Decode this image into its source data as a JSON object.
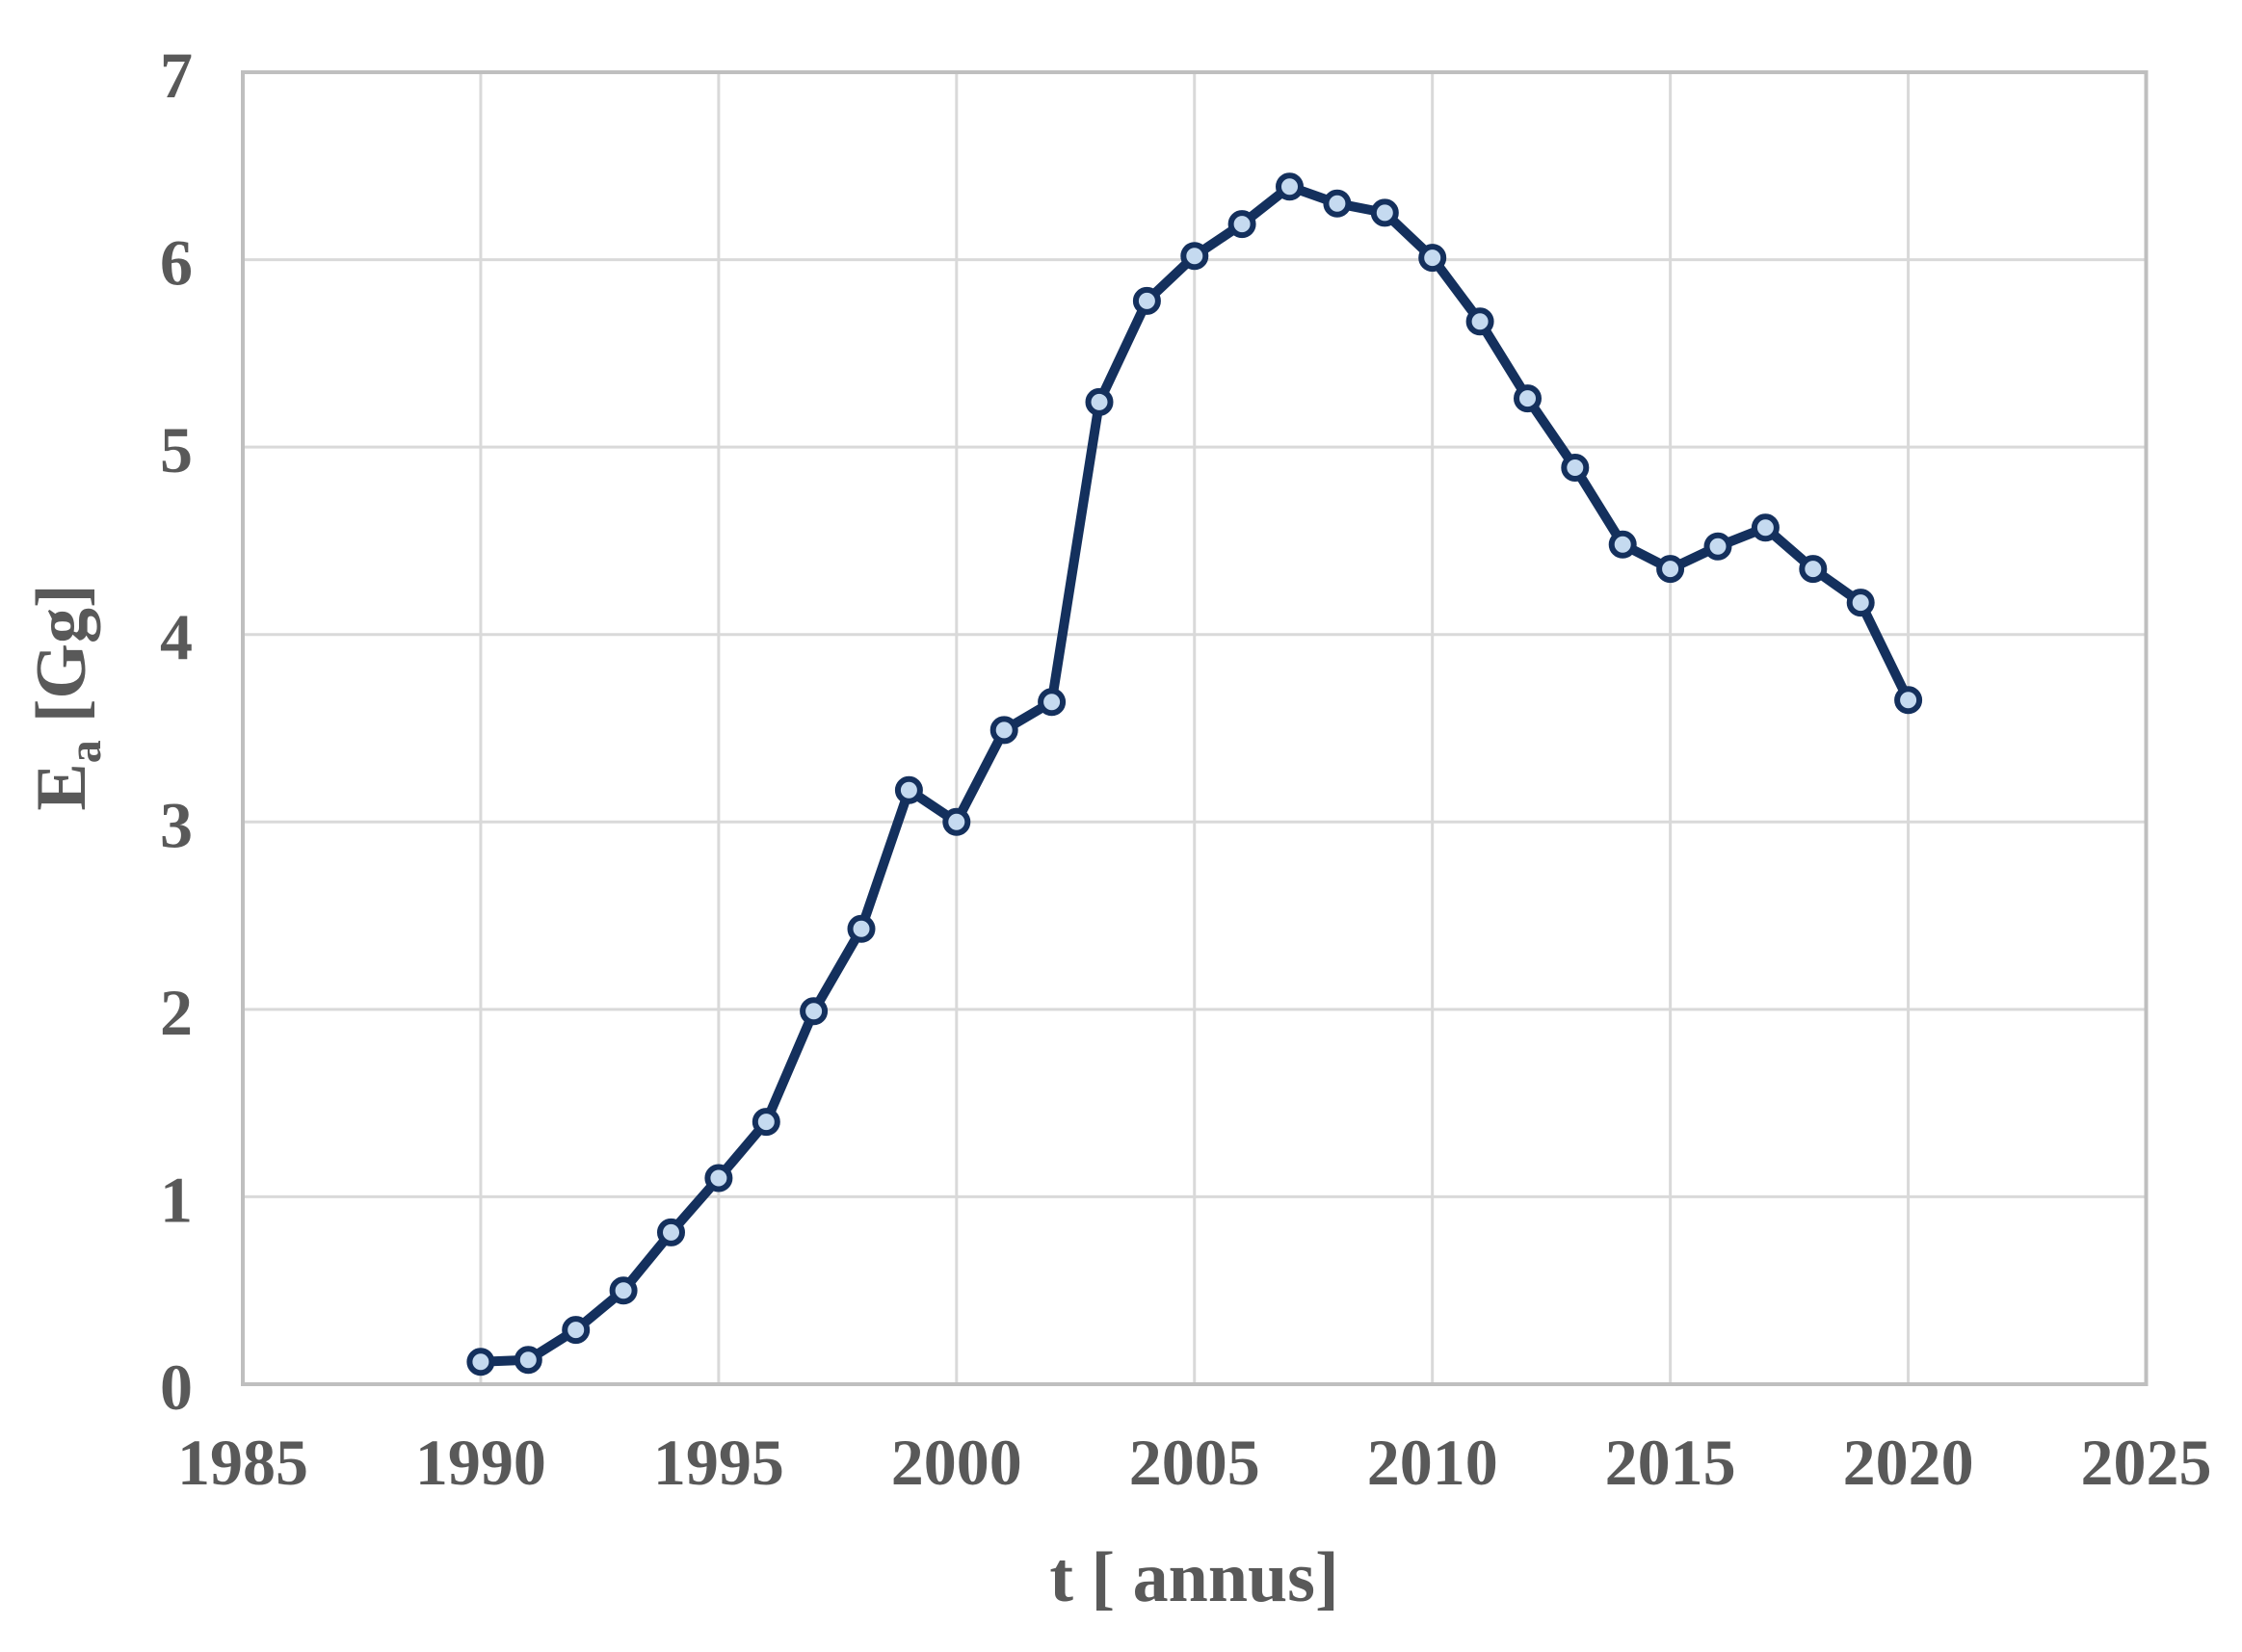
{
  "chart_data": {
    "type": "line",
    "title": "",
    "xlabel": "t [ annus]",
    "ylabel": {
      "prefix": "E",
      "subscript": "a",
      "suffix": "[Gg]"
    },
    "x": [
      1990,
      1991,
      1992,
      1993,
      1994,
      1995,
      1996,
      1997,
      1998,
      1999,
      2000,
      2001,
      2002,
      2003,
      2004,
      2005,
      2006,
      2007,
      2008,
      2009,
      2010,
      2011,
      2012,
      2013,
      2014,
      2015,
      2016,
      2017,
      2018,
      2019,
      2020
    ],
    "series": [
      {
        "name": "Ea",
        "values": [
          0.12,
          0.13,
          0.29,
          0.5,
          0.81,
          1.1,
          1.4,
          1.99,
          2.43,
          3.17,
          3.0,
          3.49,
          3.64,
          5.24,
          5.78,
          6.02,
          6.19,
          6.39,
          6.3,
          6.25,
          6.01,
          5.67,
          5.26,
          4.89,
          4.48,
          4.35,
          4.47,
          4.57,
          4.35,
          4.17,
          3.65
        ]
      }
    ],
    "xlim": [
      1985,
      2025
    ],
    "ylim": [
      0,
      7
    ],
    "x_ticks": [
      1985,
      1990,
      1995,
      2000,
      2005,
      2010,
      2015,
      2020,
      2025
    ],
    "y_ticks": [
      0,
      1,
      2,
      3,
      4,
      5,
      6,
      7
    ],
    "grid": true,
    "legend": false,
    "colors": {
      "line": "#14305d",
      "marker_fill": "#c5daf0",
      "marker_stroke": "#14305d",
      "gridline": "#d9d9d9",
      "axis_border": "#bfbfbf",
      "label": "#595959",
      "background": "#ffffff"
    }
  }
}
